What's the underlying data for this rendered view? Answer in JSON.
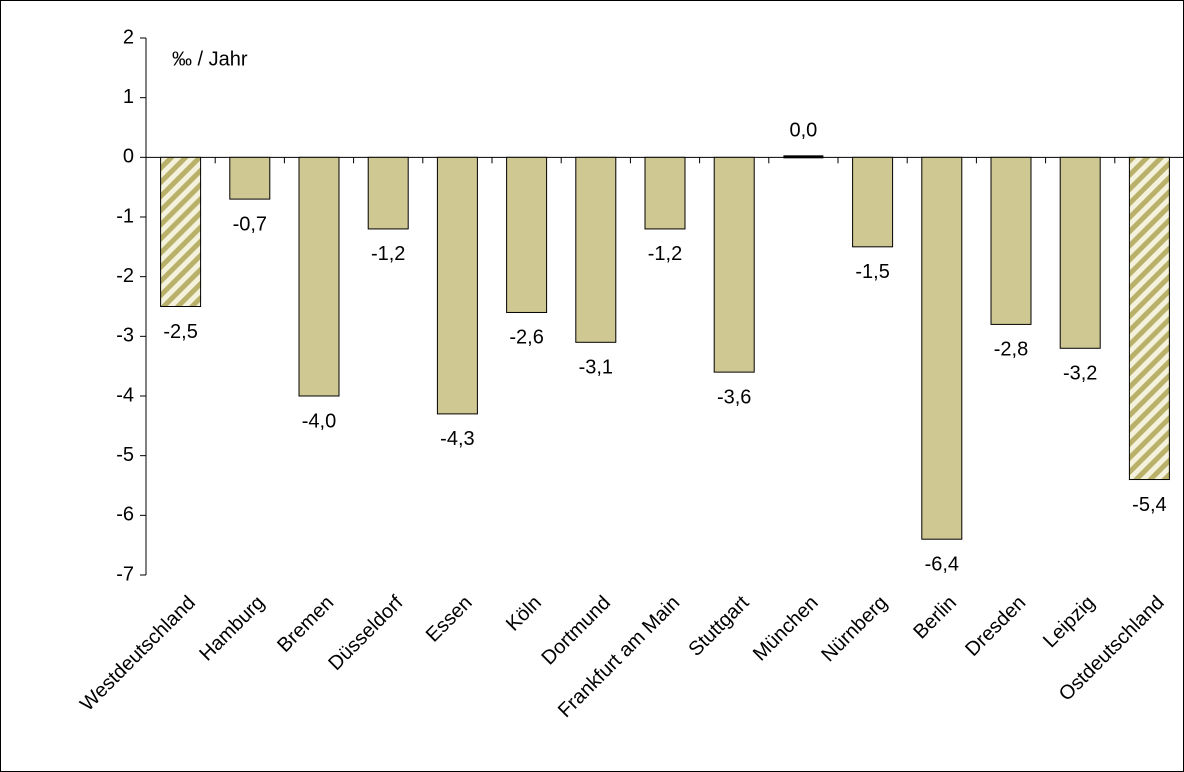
{
  "chart_data": {
    "type": "bar",
    "y_label": "‰ / Jahr",
    "categories": [
      "Westdeutschland",
      "Hamburg",
      "Bremen",
      "Düsseldorf",
      "Essen",
      "Köln",
      "Dortmund",
      "Frankfurt am Main",
      "Stuttgart",
      "München",
      "Nürnberg",
      "Berlin",
      "Dresden",
      "Leipzig",
      "Ostdeutschland"
    ],
    "values": [
      -2.5,
      -0.7,
      -4.0,
      -1.2,
      -4.3,
      -2.6,
      -3.1,
      -1.2,
      -3.6,
      0.0,
      -1.5,
      -6.4,
      -2.8,
      -3.2,
      -5.4
    ],
    "value_labels": [
      "-2,5",
      "-0,7",
      "-4,0",
      "-1,2",
      "-4,3",
      "-2,6",
      "-3,1",
      "-1,2",
      "-3,6",
      "0,0",
      "-1,5",
      "-6,4",
      "-2,8",
      "-3,2",
      "-5,4"
    ],
    "color": "#cfc893",
    "hatched": [
      0,
      14
    ],
    "ylim": [
      -7,
      2
    ],
    "yticks": [
      -7,
      -6,
      -5,
      -4,
      -3,
      -2,
      -1,
      0,
      1,
      2
    ]
  }
}
